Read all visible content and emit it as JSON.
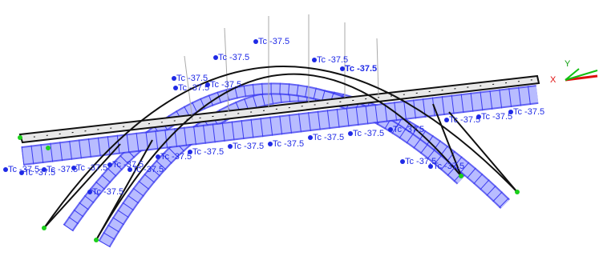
{
  "model_view": {
    "loads": [
      "Tc -37.5",
      "Tc -37.5",
      "Tc -37.5",
      "Tc -37.5",
      "Tc -37.5",
      "Tc -37.5",
      "Tc -37.5",
      "Tc -37.5",
      "Tc -37.5",
      "Tc -37.5",
      "Tc -37.5",
      "Tc -37.5",
      "Tc -37.5",
      "Tc -37.5",
      "Tc -37.5",
      "Tc -37.5",
      "Tc -37.5",
      "Tc -37.5",
      "Tc -37.5",
      "Tc -37.5",
      "Tc -37.5",
      "Tc -37.5",
      "Tc -37.5",
      "Tc -37.5",
      "Tc -37.5",
      "Tc -37.5"
    ],
    "axes": {
      "x": "X",
      "y": "Y"
    }
  }
}
